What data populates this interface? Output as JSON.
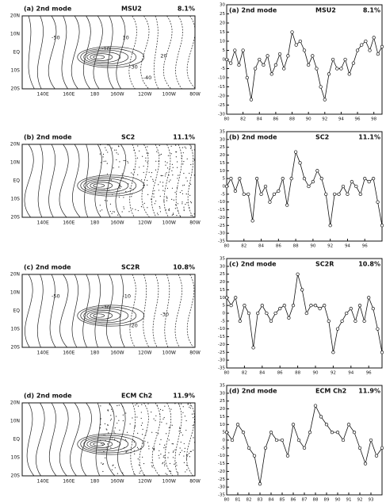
{
  "chart_data": [
    {
      "type": "contour",
      "panel": "(a) 2nd mode",
      "name": "MSU2",
      "percent": "8.1%",
      "xticks": [
        "140E",
        "160E",
        "180",
        "160W",
        "120W",
        "100W",
        "80W"
      ],
      "yticks": [
        "20N",
        "10N",
        "EQ",
        "10S",
        "20S"
      ],
      "contour_labels": [
        -50,
        -10,
        10,
        -30,
        20,
        -40
      ]
    },
    {
      "type": "contour",
      "panel": "(b) 2nd mode",
      "name": "SC2",
      "percent": "11.1%",
      "xticks": [
        "140E",
        "160E",
        "180",
        "160W",
        "120W",
        "100W",
        "80W"
      ],
      "yticks": [
        "20N",
        "10N",
        "EQ",
        "10S",
        "20S"
      ],
      "contour_labels": []
    },
    {
      "type": "contour",
      "panel": "(c) 2nd mode",
      "name": "SC2R",
      "percent": "10.8%",
      "xticks": [
        "140E",
        "160E",
        "180",
        "160W",
        "120W",
        "100W",
        "80W"
      ],
      "yticks": [
        "20N",
        "10N",
        "EQ",
        "10S",
        "20S"
      ],
      "contour_labels": [
        -50,
        -30,
        -10,
        -20,
        -30
      ]
    },
    {
      "type": "contour",
      "panel": "(d) 2nd mode",
      "name": "ECM Ch2",
      "percent": "11.9%",
      "xticks": [
        "140E",
        "160E",
        "180",
        "160W",
        "120W",
        "100W",
        "80W"
      ],
      "yticks": [
        "20N",
        "10N",
        "EQ",
        "10S",
        "20S"
      ],
      "contour_labels": []
    },
    {
      "type": "line",
      "panel": "(a) 2nd mode",
      "name": "MSU2",
      "percent": "8.1%",
      "color": "#111",
      "x": [
        80,
        80.5,
        81,
        81.5,
        82,
        82.5,
        83,
        83.5,
        84,
        84.5,
        85,
        85.5,
        86,
        86.5,
        87,
        87.5,
        88,
        88.5,
        89,
        89.5,
        90,
        90.5,
        91,
        91.5,
        92,
        92.5,
        93,
        93.5,
        94,
        94.5,
        95,
        95.5,
        96,
        96.5,
        97,
        97.5,
        98,
        98.5,
        99
      ],
      "values": [
        0,
        -2,
        5,
        -3,
        5,
        -10,
        -22,
        -5,
        0,
        -3,
        2,
        -8,
        -3,
        3,
        -5,
        2,
        15,
        8,
        10,
        5,
        -3,
        2,
        -5,
        -15,
        -22,
        -8,
        0,
        -5,
        -5,
        0,
        -8,
        -2,
        5,
        8,
        10,
        5,
        12,
        3,
        7
      ],
      "xlim": [
        80,
        99
      ],
      "ylim": [
        -30,
        30
      ],
      "xticks": [
        80,
        82,
        84,
        86,
        88,
        90,
        92,
        94,
        96,
        98
      ],
      "yticks": [
        -30,
        -25,
        -20,
        -15,
        -10,
        -5,
        0,
        5,
        10,
        15,
        20,
        25,
        30
      ]
    },
    {
      "type": "line",
      "panel": "(b) 2nd mode",
      "name": "SC2",
      "percent": "11.1%",
      "color": "#111",
      "x": [
        80,
        80.5,
        81,
        81.5,
        82,
        82.5,
        83,
        83.5,
        84,
        84.5,
        85,
        85.5,
        86,
        86.5,
        87,
        87.5,
        88,
        88.5,
        89,
        89.5,
        90,
        90.5,
        91,
        91.5,
        92,
        92.5,
        93,
        93.5,
        94,
        94.5,
        95,
        95.5,
        96,
        96.5,
        97,
        97.5,
        98
      ],
      "values": [
        0,
        5,
        -3,
        5,
        -5,
        -5,
        -22,
        5,
        -5,
        0,
        -10,
        -5,
        -3,
        5,
        -12,
        5,
        22,
        15,
        5,
        0,
        3,
        10,
        5,
        -5,
        -25,
        -5,
        -5,
        0,
        -5,
        3,
        0,
        -5,
        5,
        3,
        5,
        -10,
        -25
      ],
      "xlim": [
        80,
        98
      ],
      "ylim": [
        -35,
        35
      ],
      "xticks": [
        80,
        82,
        84,
        86,
        88,
        90,
        92,
        94,
        96
      ],
      "yticks": [
        -35,
        -30,
        -25,
        -20,
        -15,
        -10,
        -5,
        0,
        5,
        10,
        15,
        20,
        25,
        30,
        35
      ]
    },
    {
      "type": "line",
      "panel": "(c) 2nd mode",
      "name": "SC2R",
      "percent": "10.8%",
      "color": "#111",
      "x": [
        80,
        80.5,
        81,
        81.5,
        82,
        82.5,
        83,
        83.5,
        84,
        84.5,
        85,
        85.5,
        86,
        86.5,
        87,
        87.5,
        88,
        88.5,
        89,
        89.5,
        90,
        90.5,
        91,
        91.5,
        92,
        92.5,
        93,
        93.5,
        94,
        94.5,
        95,
        95.5,
        96,
        96.5,
        97,
        97.5
      ],
      "values": [
        10,
        5,
        10,
        -5,
        5,
        0,
        -22,
        0,
        5,
        0,
        -5,
        0,
        3,
        5,
        -3,
        5,
        25,
        15,
        0,
        5,
        5,
        3,
        5,
        -5,
        -25,
        -10,
        -5,
        0,
        3,
        -5,
        5,
        -5,
        10,
        3,
        -10,
        -25
      ],
      "xlim": [
        80,
        97.5
      ],
      "ylim": [
        -35,
        35
      ],
      "xticks": [
        80,
        82,
        84,
        86,
        88,
        90,
        92,
        94,
        96
      ],
      "yticks": [
        -35,
        -30,
        -25,
        -20,
        -15,
        -10,
        -5,
        0,
        5,
        10,
        15,
        20,
        25,
        30,
        35
      ]
    },
    {
      "type": "line",
      "panel": "(d) 2nd mode",
      "name": "ECM Ch2",
      "percent": "11.9%",
      "color": "#111",
      "x": [
        80,
        80.5,
        81,
        81.5,
        82,
        82.5,
        83,
        83.5,
        84,
        84.5,
        85,
        85.5,
        86,
        86.5,
        87,
        87.5,
        88,
        88.5,
        89,
        89.5,
        90,
        90.5,
        91,
        91.5,
        92,
        92.5,
        93,
        93.5,
        94
      ],
      "values": [
        5,
        0,
        10,
        5,
        -5,
        -10,
        -28,
        -5,
        5,
        0,
        0,
        -10,
        10,
        0,
        -5,
        5,
        22,
        15,
        10,
        5,
        5,
        0,
        10,
        5,
        -5,
        -15,
        0,
        -10,
        -5
      ],
      "xlim": [
        80,
        94
      ],
      "ylim": [
        -35,
        35
      ],
      "xticks": [
        80,
        81,
        82,
        83,
        84,
        85,
        86,
        87,
        88,
        89,
        90,
        91,
        92,
        93
      ],
      "yticks": [
        -35,
        -30,
        -25,
        -20,
        -15,
        -10,
        -5,
        0,
        5,
        10,
        15,
        20,
        25,
        30,
        35
      ]
    }
  ]
}
